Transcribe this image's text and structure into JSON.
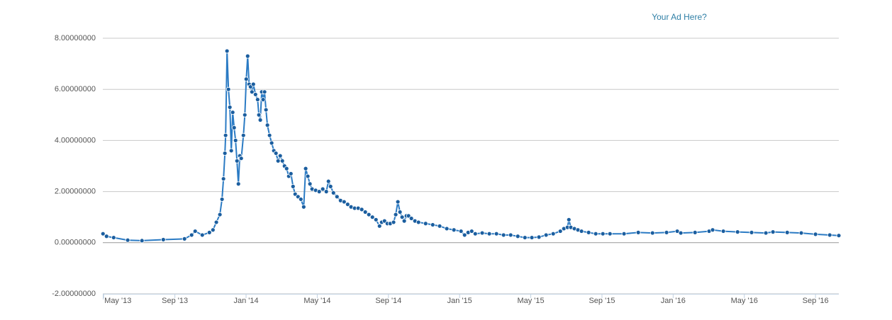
{
  "chart_data": {
    "type": "line",
    "annotations": [
      "Your Ad Here?"
    ],
    "color": "#2b7bc4",
    "marker_color": "#1b5e9f",
    "grid": true,
    "xlim": [
      -0.05,
      41.31
    ],
    "xticks": [
      {
        "value": 0,
        "label": "May '13"
      },
      {
        "value": 4,
        "label": "Sep '13"
      },
      {
        "value": 8,
        "label": "Jan '14"
      },
      {
        "value": 12,
        "label": "May '14"
      },
      {
        "value": 16,
        "label": "Sep '14"
      },
      {
        "value": 20,
        "label": "Jan '15"
      },
      {
        "value": 24,
        "label": "May '15"
      },
      {
        "value": 28,
        "label": "Sep '15"
      },
      {
        "value": 32,
        "label": "Jan '16"
      },
      {
        "value": 36,
        "label": "May '16"
      },
      {
        "value": 40,
        "label": "Sep '16"
      }
    ],
    "ylim": [
      -2,
      8
    ],
    "yticks": [
      {
        "value": -2,
        "label": "-2.00000000"
      },
      {
        "value": 0,
        "label": "0.00000000"
      },
      {
        "value": 2,
        "label": "2.00000000"
      },
      {
        "value": 4,
        "label": "4.00000000"
      },
      {
        "value": 6,
        "label": "6.00000000"
      },
      {
        "value": 8,
        "label": "8.00000000"
      }
    ],
    "x": [
      -0.04,
      0.16,
      0.56,
      1.35,
      2.15,
      3.35,
      4.54,
      4.94,
      5.14,
      5.54,
      5.94,
      6.14,
      6.33,
      6.53,
      6.65,
      6.73,
      6.81,
      6.85,
      6.93,
      7.01,
      7.09,
      7.17,
      7.25,
      7.33,
      7.41,
      7.49,
      7.57,
      7.65,
      7.73,
      7.85,
      7.93,
      8.01,
      8.09,
      8.17,
      8.25,
      8.33,
      8.41,
      8.53,
      8.65,
      8.72,
      8.8,
      8.88,
      8.96,
      9.04,
      9.12,
      9.2,
      9.32,
      9.44,
      9.56,
      9.68,
      9.8,
      9.92,
      10.04,
      10.16,
      10.28,
      10.4,
      10.52,
      10.64,
      10.76,
      10.92,
      11.08,
      11.24,
      11.35,
      11.47,
      11.59,
      11.71,
      11.91,
      12.11,
      12.31,
      12.51,
      12.63,
      12.75,
      12.91,
      13.11,
      13.31,
      13.51,
      13.71,
      13.9,
      14.1,
      14.3,
      14.5,
      14.7,
      14.9,
      15.1,
      15.3,
      15.5,
      15.62,
      15.78,
      15.94,
      16.1,
      16.29,
      16.41,
      16.53,
      16.65,
      16.77,
      16.89,
      17.01,
      17.13,
      17.29,
      17.49,
      17.69,
      18.09,
      18.49,
      18.88,
      19.28,
      19.68,
      20.08,
      20.28,
      20.48,
      20.68,
      20.88,
      21.27,
      21.67,
      22.07,
      22.47,
      22.87,
      23.27,
      23.67,
      24.06,
      24.46,
      24.86,
      25.26,
      25.66,
      25.86,
      26.06,
      26.14,
      26.25,
      26.45,
      26.65,
      26.85,
      27.25,
      27.65,
      28.05,
      28.45,
      29.24,
      30.04,
      30.84,
      31.63,
      32.23,
      32.43,
      33.23,
      34.02,
      34.22,
      34.82,
      35.62,
      36.41,
      37.21,
      37.61,
      38.41,
      39.2,
      40.0,
      40.8,
      41.31
    ],
    "values": [
      0.35,
      0.25,
      0.2,
      0.1,
      0.08,
      0.12,
      0.15,
      0.3,
      0.45,
      0.3,
      0.4,
      0.5,
      0.8,
      1.1,
      1.7,
      2.5,
      3.5,
      4.2,
      7.5,
      6.0,
      5.3,
      3.6,
      5.1,
      4.5,
      4.0,
      3.2,
      2.3,
      3.4,
      3.3,
      4.2,
      5.0,
      6.4,
      7.3,
      6.2,
      6.1,
      5.9,
      6.2,
      5.8,
      5.6,
      5.0,
      4.8,
      5.9,
      5.6,
      5.9,
      5.2,
      4.6,
      4.2,
      3.9,
      3.6,
      3.5,
      3.2,
      3.4,
      3.2,
      3.0,
      2.9,
      2.6,
      2.7,
      2.2,
      1.9,
      1.8,
      1.7,
      1.4,
      2.9,
      2.6,
      2.3,
      2.1,
      2.05,
      2.0,
      2.1,
      2.0,
      2.4,
      2.2,
      1.95,
      1.8,
      1.65,
      1.6,
      1.5,
      1.4,
      1.35,
      1.35,
      1.3,
      1.2,
      1.1,
      1.0,
      0.9,
      0.65,
      0.8,
      0.85,
      0.75,
      0.75,
      0.8,
      1.1,
      1.6,
      1.2,
      1.0,
      0.85,
      1.05,
      1.05,
      0.95,
      0.85,
      0.8,
      0.75,
      0.7,
      0.65,
      0.55,
      0.5,
      0.45,
      0.3,
      0.4,
      0.45,
      0.35,
      0.38,
      0.35,
      0.35,
      0.3,
      0.3,
      0.25,
      0.2,
      0.2,
      0.22,
      0.3,
      0.35,
      0.45,
      0.55,
      0.6,
      0.9,
      0.6,
      0.55,
      0.5,
      0.45,
      0.4,
      0.35,
      0.35,
      0.35,
      0.35,
      0.4,
      0.38,
      0.4,
      0.45,
      0.38,
      0.4,
      0.45,
      0.5,
      0.45,
      0.42,
      0.4,
      0.38,
      0.42,
      0.4,
      0.38,
      0.33,
      0.3,
      0.28
    ]
  }
}
